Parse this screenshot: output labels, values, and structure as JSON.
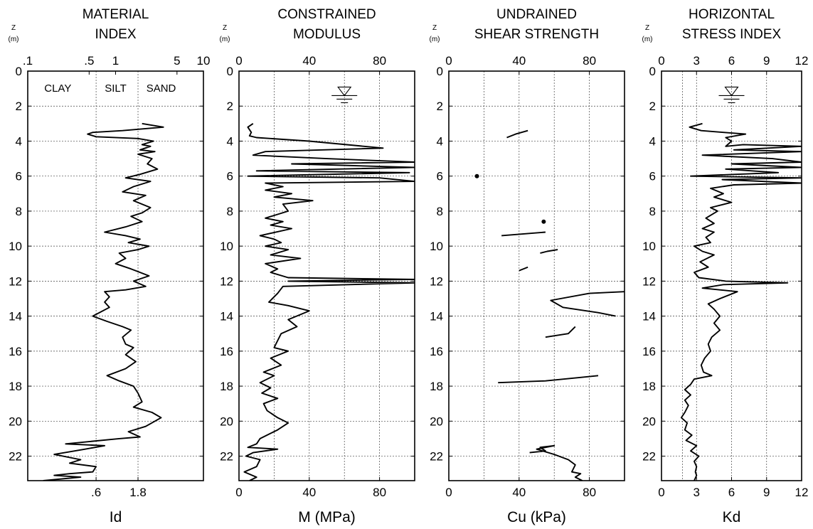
{
  "chart_data": [
    {
      "type": "line",
      "title": [
        "MATERIAL",
        "INDEX"
      ],
      "xlabel": "Id",
      "depth_label": [
        "Z",
        "(m)"
      ],
      "x_scale": "log",
      "xlim": [
        0.1,
        10
      ],
      "ylim": [
        0,
        23.4
      ],
      "x_ticks_top": [
        {
          "v": 0.1,
          "label": ".1"
        },
        {
          "v": 0.5,
          "label": ".5"
        },
        {
          "v": 1,
          "label": "1"
        },
        {
          "v": 5,
          "label": "5"
        },
        {
          "v": 10,
          "label": "10"
        }
      ],
      "x_ticks_bottom": [
        {
          "v": 0.6,
          "label": ".6"
        },
        {
          "v": 1.8,
          "label": "1.8"
        }
      ],
      "y_ticks": [
        0,
        2,
        4,
        6,
        8,
        10,
        12,
        14,
        16,
        18,
        20,
        22
      ],
      "soil_bands": [
        {
          "label": "CLAY",
          "v": 0.22
        },
        {
          "label": "SILT",
          "v": 1.0
        },
        {
          "label": "SAND",
          "v": 3.3
        }
      ],
      "vgrid": [
        0.6,
        1.8
      ],
      "points": [
        [
          2.0,
          3.0
        ],
        [
          3.5,
          3.2
        ],
        [
          1.2,
          3.4
        ],
        [
          0.55,
          3.5
        ],
        [
          0.48,
          3.6
        ],
        [
          0.6,
          3.75
        ],
        [
          1.8,
          3.85
        ],
        [
          2.7,
          4.0
        ],
        [
          2.0,
          4.2
        ],
        [
          2.5,
          4.3
        ],
        [
          1.9,
          4.5
        ],
        [
          2.8,
          4.6
        ],
        [
          1.8,
          4.75
        ],
        [
          2.6,
          5.0
        ],
        [
          2.3,
          5.3
        ],
        [
          3.0,
          5.6
        ],
        [
          1.9,
          5.9
        ],
        [
          1.3,
          6.1
        ],
        [
          2.5,
          6.3
        ],
        [
          1.6,
          6.6
        ],
        [
          1.2,
          6.9
        ],
        [
          2.2,
          7.1
        ],
        [
          1.6,
          7.4
        ],
        [
          2.5,
          7.8
        ],
        [
          2.0,
          8.1
        ],
        [
          1.5,
          8.3
        ],
        [
          2.0,
          8.6
        ],
        [
          1.3,
          8.9
        ],
        [
          0.75,
          9.2
        ],
        [
          1.3,
          9.4
        ],
        [
          1.9,
          9.6
        ],
        [
          1.4,
          9.8
        ],
        [
          2.4,
          10.0
        ],
        [
          1.8,
          10.2
        ],
        [
          1.1,
          10.4
        ],
        [
          1.3,
          10.7
        ],
        [
          1.0,
          11.0
        ],
        [
          1.5,
          11.3
        ],
        [
          2.4,
          11.7
        ],
        [
          1.6,
          12.0
        ],
        [
          2.2,
          12.3
        ],
        [
          1.3,
          12.5
        ],
        [
          0.75,
          12.6
        ],
        [
          0.85,
          12.9
        ],
        [
          0.75,
          13.2
        ],
        [
          0.85,
          13.5
        ],
        [
          0.55,
          14.0
        ],
        [
          0.8,
          14.3
        ],
        [
          1.2,
          14.6
        ],
        [
          1.5,
          14.8
        ],
        [
          1.2,
          15.2
        ],
        [
          1.3,
          15.6
        ],
        [
          1.6,
          15.8
        ],
        [
          1.3,
          16.2
        ],
        [
          1.7,
          16.6
        ],
        [
          1.3,
          17.0
        ],
        [
          0.8,
          17.4
        ],
        [
          1.1,
          17.7
        ],
        [
          1.6,
          18.0
        ],
        [
          1.8,
          18.4
        ],
        [
          2.0,
          18.9
        ],
        [
          1.6,
          19.2
        ],
        [
          2.6,
          19.5
        ],
        [
          3.3,
          19.8
        ],
        [
          2.2,
          20.3
        ],
        [
          1.4,
          20.6
        ],
        [
          1.9,
          20.9
        ],
        [
          1.1,
          21.0
        ],
        [
          0.27,
          21.3
        ],
        [
          0.75,
          21.4
        ],
        [
          0.45,
          21.6
        ],
        [
          0.2,
          21.9
        ],
        [
          0.4,
          22.2
        ],
        [
          0.3,
          22.4
        ],
        [
          0.6,
          22.6
        ],
        [
          0.55,
          22.9
        ],
        [
          0.3,
          23.0
        ],
        [
          0.2,
          23.1
        ],
        [
          0.4,
          23.2
        ],
        [
          0.15,
          23.4
        ]
      ]
    },
    {
      "type": "line",
      "title": [
        "CONSTRAINED",
        "MODULUS"
      ],
      "xlabel": "M (MPa)",
      "depth_label": [
        "Z",
        "(m)"
      ],
      "x_scale": "linear",
      "xlim": [
        0,
        100
      ],
      "ylim": [
        0,
        23.4
      ],
      "x_ticks_top": [
        {
          "v": 0,
          "label": "0"
        },
        {
          "v": 40,
          "label": "40"
        },
        {
          "v": 80,
          "label": "80"
        }
      ],
      "x_ticks_bottom": [
        {
          "v": 0,
          "label": "0"
        },
        {
          "v": 40,
          "label": "40"
        },
        {
          "v": 80,
          "label": "80"
        }
      ],
      "y_ticks": [
        0,
        2,
        4,
        6,
        8,
        10,
        12,
        14,
        16,
        18,
        20,
        22
      ],
      "vgrid": [
        20,
        40,
        60,
        80
      ],
      "water_table": {
        "x": 60,
        "depth": 1.4
      },
      "points": [
        [
          8,
          3.0
        ],
        [
          5,
          3.2
        ],
        [
          7,
          3.5
        ],
        [
          6,
          3.7
        ],
        [
          10,
          3.8
        ],
        [
          40,
          4.0
        ],
        [
          82,
          4.4
        ],
        [
          15,
          4.6
        ],
        [
          8,
          4.8
        ],
        [
          50,
          5.0
        ],
        [
          100,
          5.2
        ],
        [
          30,
          5.3
        ],
        [
          100,
          5.5
        ],
        [
          10,
          5.7
        ],
        [
          97,
          5.8
        ],
        [
          5,
          6.0
        ],
        [
          80,
          6.1
        ],
        [
          100,
          6.3
        ],
        [
          15,
          6.4
        ],
        [
          25,
          6.6
        ],
        [
          15,
          6.8
        ],
        [
          30,
          7.0
        ],
        [
          20,
          7.2
        ],
        [
          42,
          7.4
        ],
        [
          25,
          7.6
        ],
        [
          28,
          8.0
        ],
        [
          15,
          8.4
        ],
        [
          25,
          8.6
        ],
        [
          18,
          8.8
        ],
        [
          30,
          9.0
        ],
        [
          12,
          9.4
        ],
        [
          20,
          9.6
        ],
        [
          24,
          9.8
        ],
        [
          15,
          10.0
        ],
        [
          28,
          10.2
        ],
        [
          18,
          10.5
        ],
        [
          35,
          10.7
        ],
        [
          15,
          11.0
        ],
        [
          22,
          11.3
        ],
        [
          18,
          11.5
        ],
        [
          28,
          11.8
        ],
        [
          100,
          11.9
        ],
        [
          28,
          12.0
        ],
        [
          100,
          12.1
        ],
        [
          25,
          12.3
        ],
        [
          22,
          12.7
        ],
        [
          17,
          13.2
        ],
        [
          28,
          13.4
        ],
        [
          40,
          13.7
        ],
        [
          28,
          14.2
        ],
        [
          33,
          14.6
        ],
        [
          24,
          15.0
        ],
        [
          22,
          15.4
        ],
        [
          20,
          15.8
        ],
        [
          28,
          16.0
        ],
        [
          18,
          16.4
        ],
        [
          24,
          16.8
        ],
        [
          14,
          17.2
        ],
        [
          20,
          17.4
        ],
        [
          12,
          17.8
        ],
        [
          18,
          18.1
        ],
        [
          13,
          18.4
        ],
        [
          22,
          18.7
        ],
        [
          14,
          19.0
        ],
        [
          16,
          19.4
        ],
        [
          22,
          19.8
        ],
        [
          28,
          20.1
        ],
        [
          22,
          20.5
        ],
        [
          12,
          21.0
        ],
        [
          10,
          21.3
        ],
        [
          5,
          21.5
        ],
        [
          22,
          21.6
        ],
        [
          8,
          21.8
        ],
        [
          4,
          22.0
        ],
        [
          12,
          22.2
        ],
        [
          10,
          22.6
        ],
        [
          3,
          22.9
        ],
        [
          10,
          23.2
        ],
        [
          6,
          23.4
        ]
      ]
    },
    {
      "type": "line",
      "title": [
        "UNDRAINED",
        "SHEAR STRENGTH"
      ],
      "xlabel": "Cu (kPa)",
      "depth_label": [
        "Z",
        "(m)"
      ],
      "x_scale": "linear",
      "xlim": [
        0,
        100
      ],
      "ylim": [
        0,
        23.4
      ],
      "x_ticks_top": [
        {
          "v": 0,
          "label": "0"
        },
        {
          "v": 40,
          "label": "40"
        },
        {
          "v": 80,
          "label": "80"
        }
      ],
      "x_ticks_bottom": [
        {
          "v": 0,
          "label": "0"
        },
        {
          "v": 40,
          "label": "40"
        },
        {
          "v": 80,
          "label": "80"
        }
      ],
      "y_ticks": [
        0,
        2,
        4,
        6,
        8,
        10,
        12,
        14,
        16,
        18,
        20,
        22
      ],
      "vgrid": [
        20,
        40,
        60,
        80
      ],
      "isolated_points": [
        [
          16,
          6.0
        ],
        [
          54,
          8.6
        ]
      ],
      "segments": [
        [
          [
            33,
            3.8
          ],
          [
            38,
            3.6
          ],
          [
            45,
            3.4
          ]
        ],
        [
          [
            30,
            9.4
          ],
          [
            55,
            9.2
          ]
        ],
        [
          [
            52,
            10.4
          ],
          [
            56,
            10.3
          ],
          [
            62,
            10.2
          ]
        ],
        [
          [
            40,
            11.4
          ],
          [
            45,
            11.2
          ]
        ],
        [
          [
            100,
            12.6
          ],
          [
            80,
            12.7
          ],
          [
            58,
            13.1
          ],
          [
            65,
            13.5
          ],
          [
            85,
            13.8
          ],
          [
            95,
            14.0
          ]
        ],
        [
          [
            55,
            15.2
          ],
          [
            68,
            15.0
          ],
          [
            72,
            14.6
          ]
        ],
        [
          [
            28,
            17.8
          ],
          [
            55,
            17.7
          ],
          [
            75,
            17.5
          ],
          [
            85,
            17.4
          ]
        ],
        [
          [
            46,
            21.8
          ],
          [
            55,
            21.7
          ],
          [
            52,
            21.5
          ],
          [
            60,
            21.4
          ],
          [
            50,
            21.6
          ],
          [
            60,
            21.9
          ],
          [
            68,
            22.2
          ],
          [
            72,
            22.5
          ],
          [
            70,
            22.9
          ],
          [
            75,
            23.0
          ],
          [
            72,
            23.2
          ],
          [
            76,
            23.4
          ]
        ]
      ]
    },
    {
      "type": "line",
      "title": [
        "HORIZONTAL",
        "STRESS INDEX"
      ],
      "xlabel": "Kd",
      "depth_label": [
        "Z",
        "(m)"
      ],
      "x_scale": "linear",
      "xlim": [
        0,
        12
      ],
      "ylim": [
        0,
        23.4
      ],
      "x_ticks_top": [
        {
          "v": 0,
          "label": "0"
        },
        {
          "v": 3,
          "label": "3"
        },
        {
          "v": 6,
          "label": "6"
        },
        {
          "v": 9,
          "label": "9"
        },
        {
          "v": 12,
          "label": "12"
        }
      ],
      "x_ticks_bottom": [
        {
          "v": 0,
          "label": "0"
        },
        {
          "v": 3,
          "label": "3"
        },
        {
          "v": 6,
          "label": "6"
        },
        {
          "v": 9,
          "label": "9"
        },
        {
          "v": 12,
          "label": "12"
        }
      ],
      "y_ticks": [
        0,
        2,
        4,
        6,
        8,
        10,
        12,
        14,
        16,
        18,
        20,
        22
      ],
      "vgrid": [
        1.8,
        3,
        6,
        9
      ],
      "water_table": {
        "x": 6,
        "depth": 1.4
      },
      "points": [
        [
          3.5,
          3.0
        ],
        [
          2.4,
          3.2
        ],
        [
          3.4,
          3.4
        ],
        [
          5.3,
          3.5
        ],
        [
          7.2,
          3.6
        ],
        [
          5.5,
          3.8
        ],
        [
          6.0,
          4.0
        ],
        [
          5.5,
          4.3
        ],
        [
          7.0,
          4.2
        ],
        [
          12.0,
          4.3
        ],
        [
          6.2,
          4.5
        ],
        [
          12.0,
          4.6
        ],
        [
          3.5,
          4.8
        ],
        [
          9.5,
          5.0
        ],
        [
          12.0,
          5.2
        ],
        [
          6.0,
          5.3
        ],
        [
          12.0,
          5.5
        ],
        [
          5.5,
          5.6
        ],
        [
          10.0,
          5.8
        ],
        [
          2.5,
          6.0
        ],
        [
          12.0,
          6.1
        ],
        [
          5.2,
          6.2
        ],
        [
          12.0,
          6.4
        ],
        [
          6.2,
          6.5
        ],
        [
          4.2,
          6.7
        ],
        [
          5.3,
          7.0
        ],
        [
          4.5,
          7.2
        ],
        [
          6.0,
          7.5
        ],
        [
          4.2,
          7.8
        ],
        [
          4.8,
          8.0
        ],
        [
          3.8,
          8.4
        ],
        [
          4.5,
          8.7
        ],
        [
          3.5,
          9.0
        ],
        [
          4.5,
          9.2
        ],
        [
          3.8,
          9.5
        ],
        [
          4.2,
          9.8
        ],
        [
          2.8,
          10.0
        ],
        [
          3.5,
          10.3
        ],
        [
          4.5,
          10.5
        ],
        [
          3.3,
          10.9
        ],
        [
          4.0,
          11.2
        ],
        [
          2.8,
          11.5
        ],
        [
          3.2,
          11.8
        ],
        [
          5.5,
          12.0
        ],
        [
          10.8,
          12.1
        ],
        [
          5.3,
          12.2
        ],
        [
          3.5,
          12.4
        ],
        [
          6.5,
          12.6
        ],
        [
          5.0,
          13.0
        ],
        [
          4.0,
          13.3
        ],
        [
          4.5,
          13.6
        ],
        [
          5.0,
          14.0
        ],
        [
          4.5,
          14.4
        ],
        [
          5.0,
          14.8
        ],
        [
          4.3,
          15.2
        ],
        [
          4.0,
          15.6
        ],
        [
          4.2,
          16.0
        ],
        [
          3.7,
          16.4
        ],
        [
          3.4,
          16.8
        ],
        [
          3.6,
          17.2
        ],
        [
          4.3,
          17.4
        ],
        [
          2.8,
          17.6
        ],
        [
          2.5,
          17.9
        ],
        [
          2.0,
          18.2
        ],
        [
          2.5,
          18.5
        ],
        [
          2.0,
          18.8
        ],
        [
          2.3,
          19.1
        ],
        [
          2.0,
          19.5
        ],
        [
          1.7,
          19.8
        ],
        [
          2.2,
          20.1
        ],
        [
          2.0,
          20.5
        ],
        [
          2.6,
          20.8
        ],
        [
          2.1,
          21.1
        ],
        [
          3.0,
          21.4
        ],
        [
          2.5,
          21.7
        ],
        [
          3.2,
          22.0
        ],
        [
          2.8,
          22.3
        ],
        [
          3.0,
          22.6
        ],
        [
          2.9,
          22.9
        ],
        [
          3.0,
          23.1
        ],
        [
          2.8,
          23.4
        ]
      ]
    }
  ]
}
